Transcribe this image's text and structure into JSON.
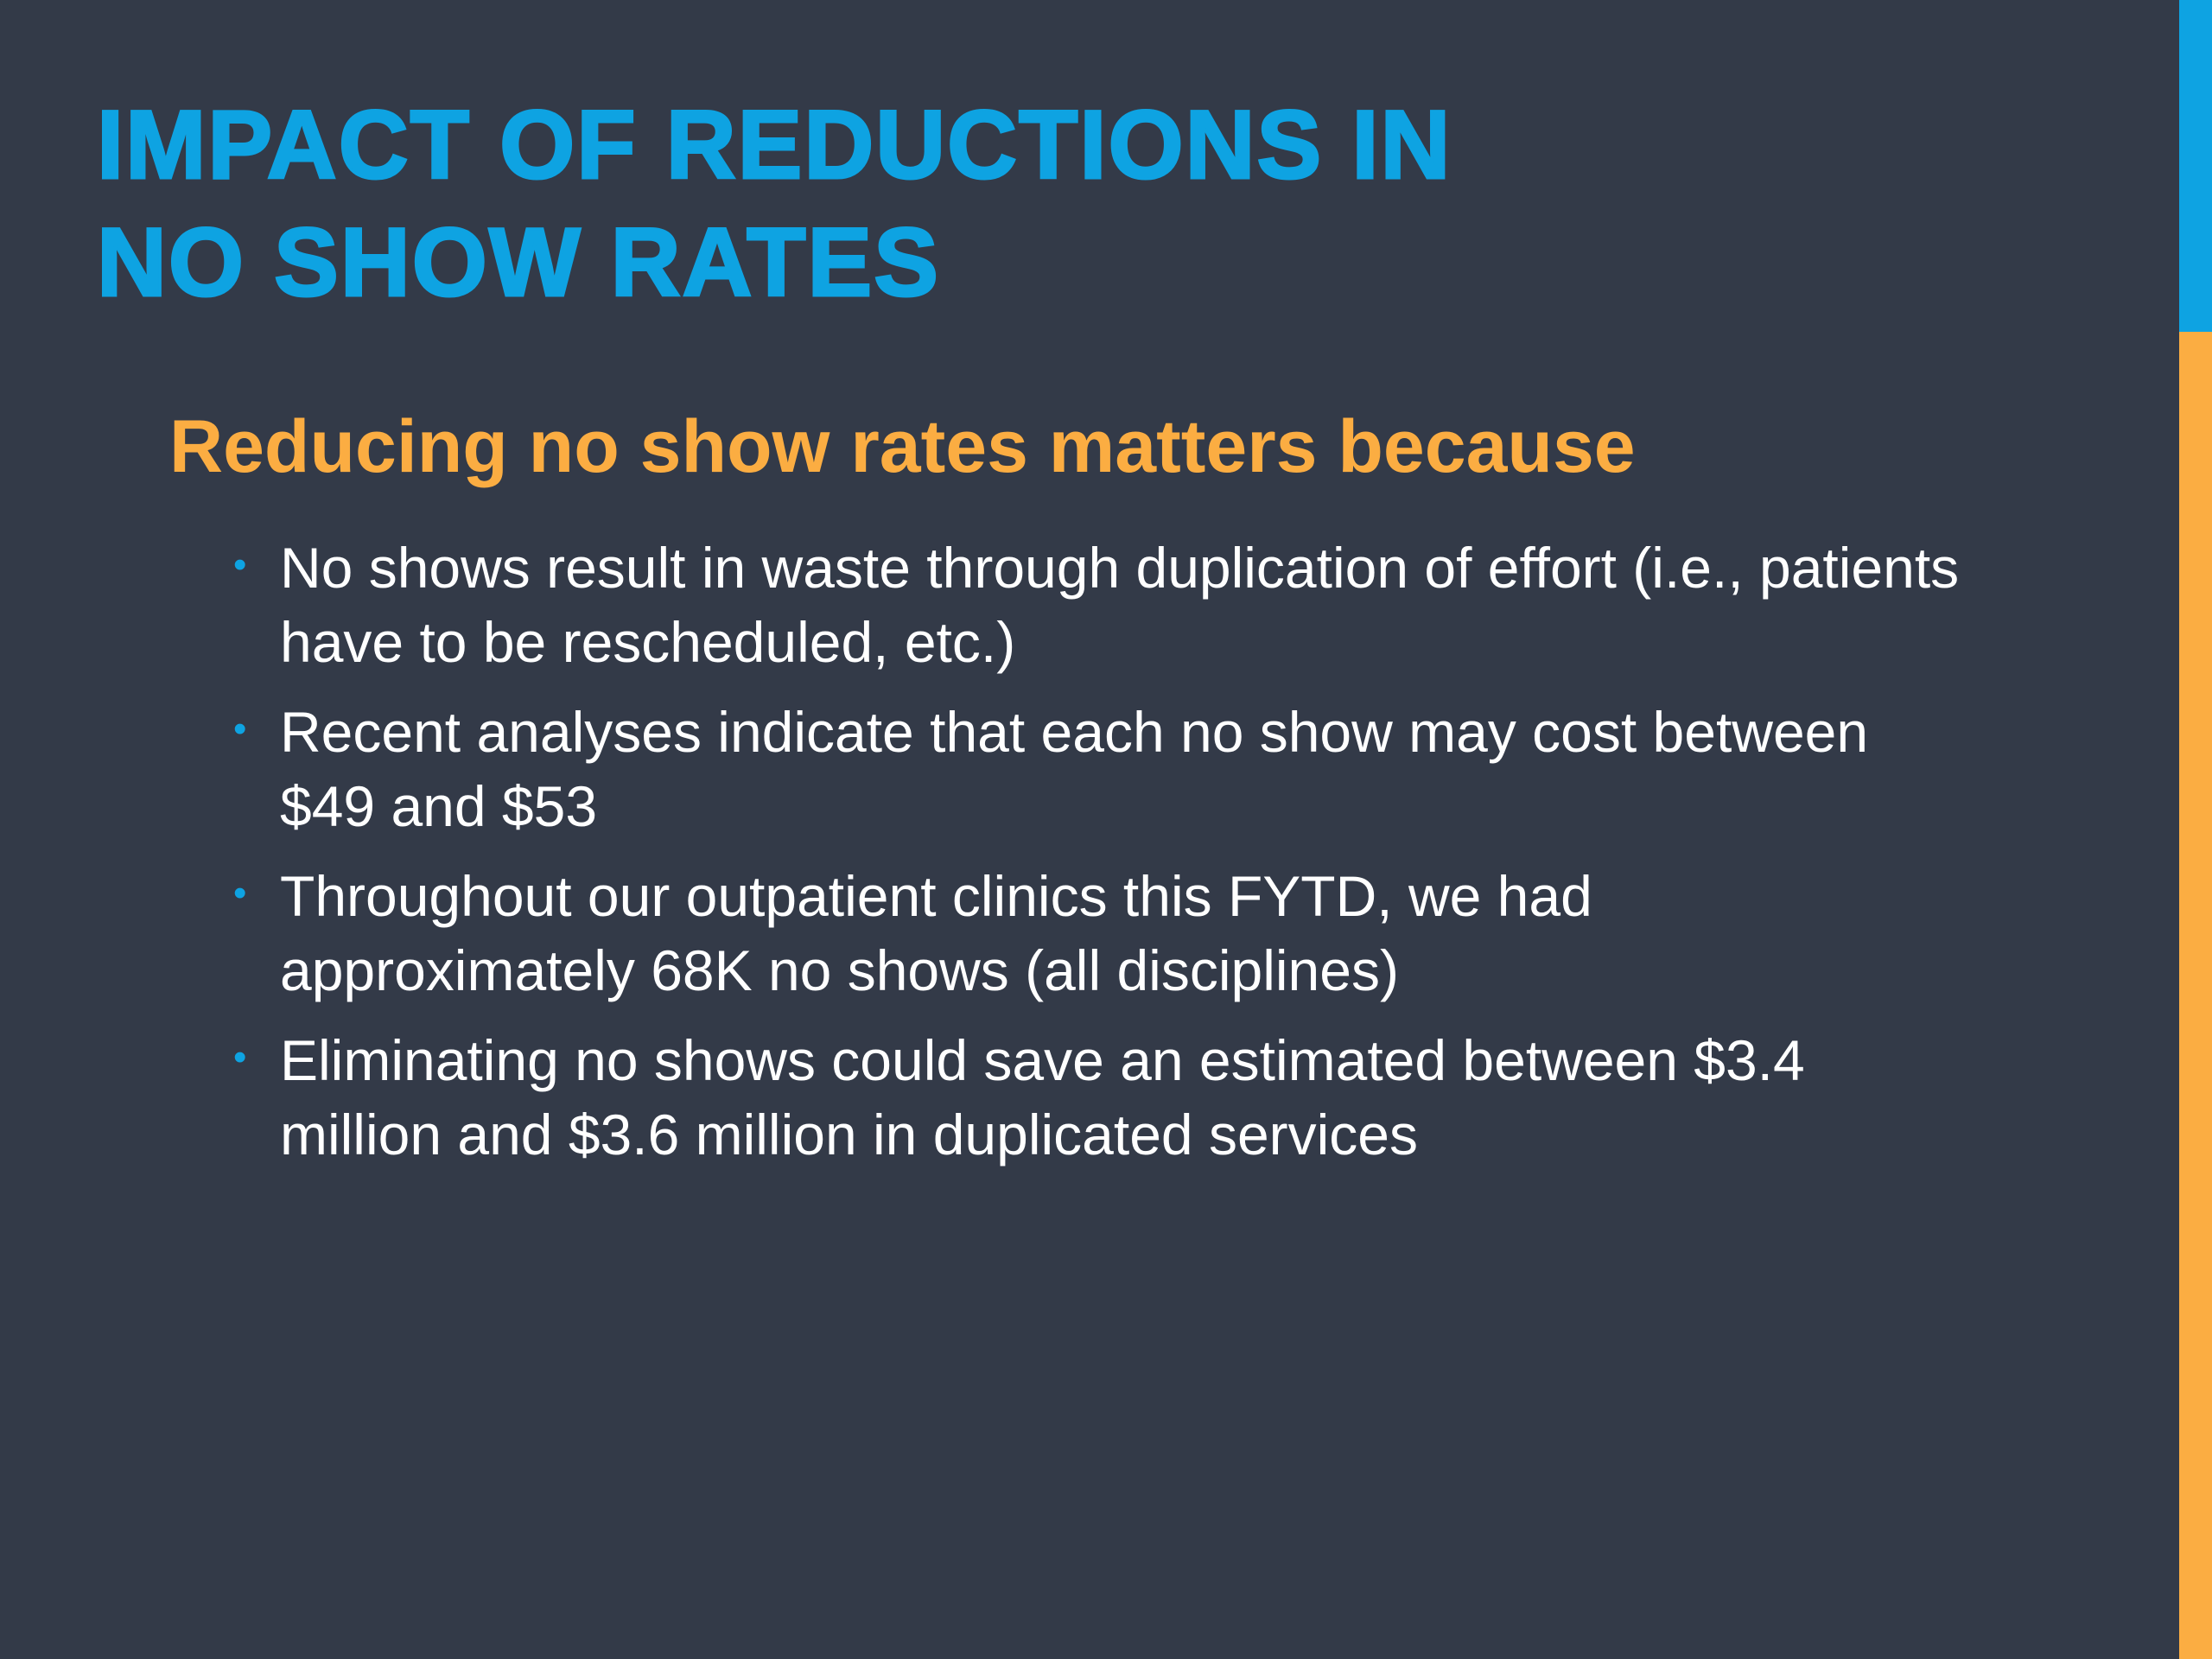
{
  "slide": {
    "title_line1": "IMPACT OF REDUCTIONS IN",
    "title_line2": "NO SHOW RATES",
    "subtitle": "Reducing no show rates matters because",
    "bullet_glyph": "•",
    "bullets": [
      {
        "text": "No shows result in waste through duplication of effort (i.e., patients have to be rescheduled, etc.)"
      },
      {
        "text": "Recent analyses indicate that each no show may cost between $49 and $53"
      },
      {
        "text": "Throughout our outpatient clinics this FYTD, we had approximately 68K no shows (all disciplines)"
      },
      {
        "text": "Eliminating no shows could save an estimated between $3.4 million and $3.6 million in duplicated services"
      }
    ]
  },
  "colors": {
    "background": "#333a48",
    "title": "#0ea3e2",
    "subtitle": "#fbad42",
    "body_text": "#ffffff",
    "accent_top": "#0ea3e2",
    "accent_bottom": "#fbad42"
  }
}
